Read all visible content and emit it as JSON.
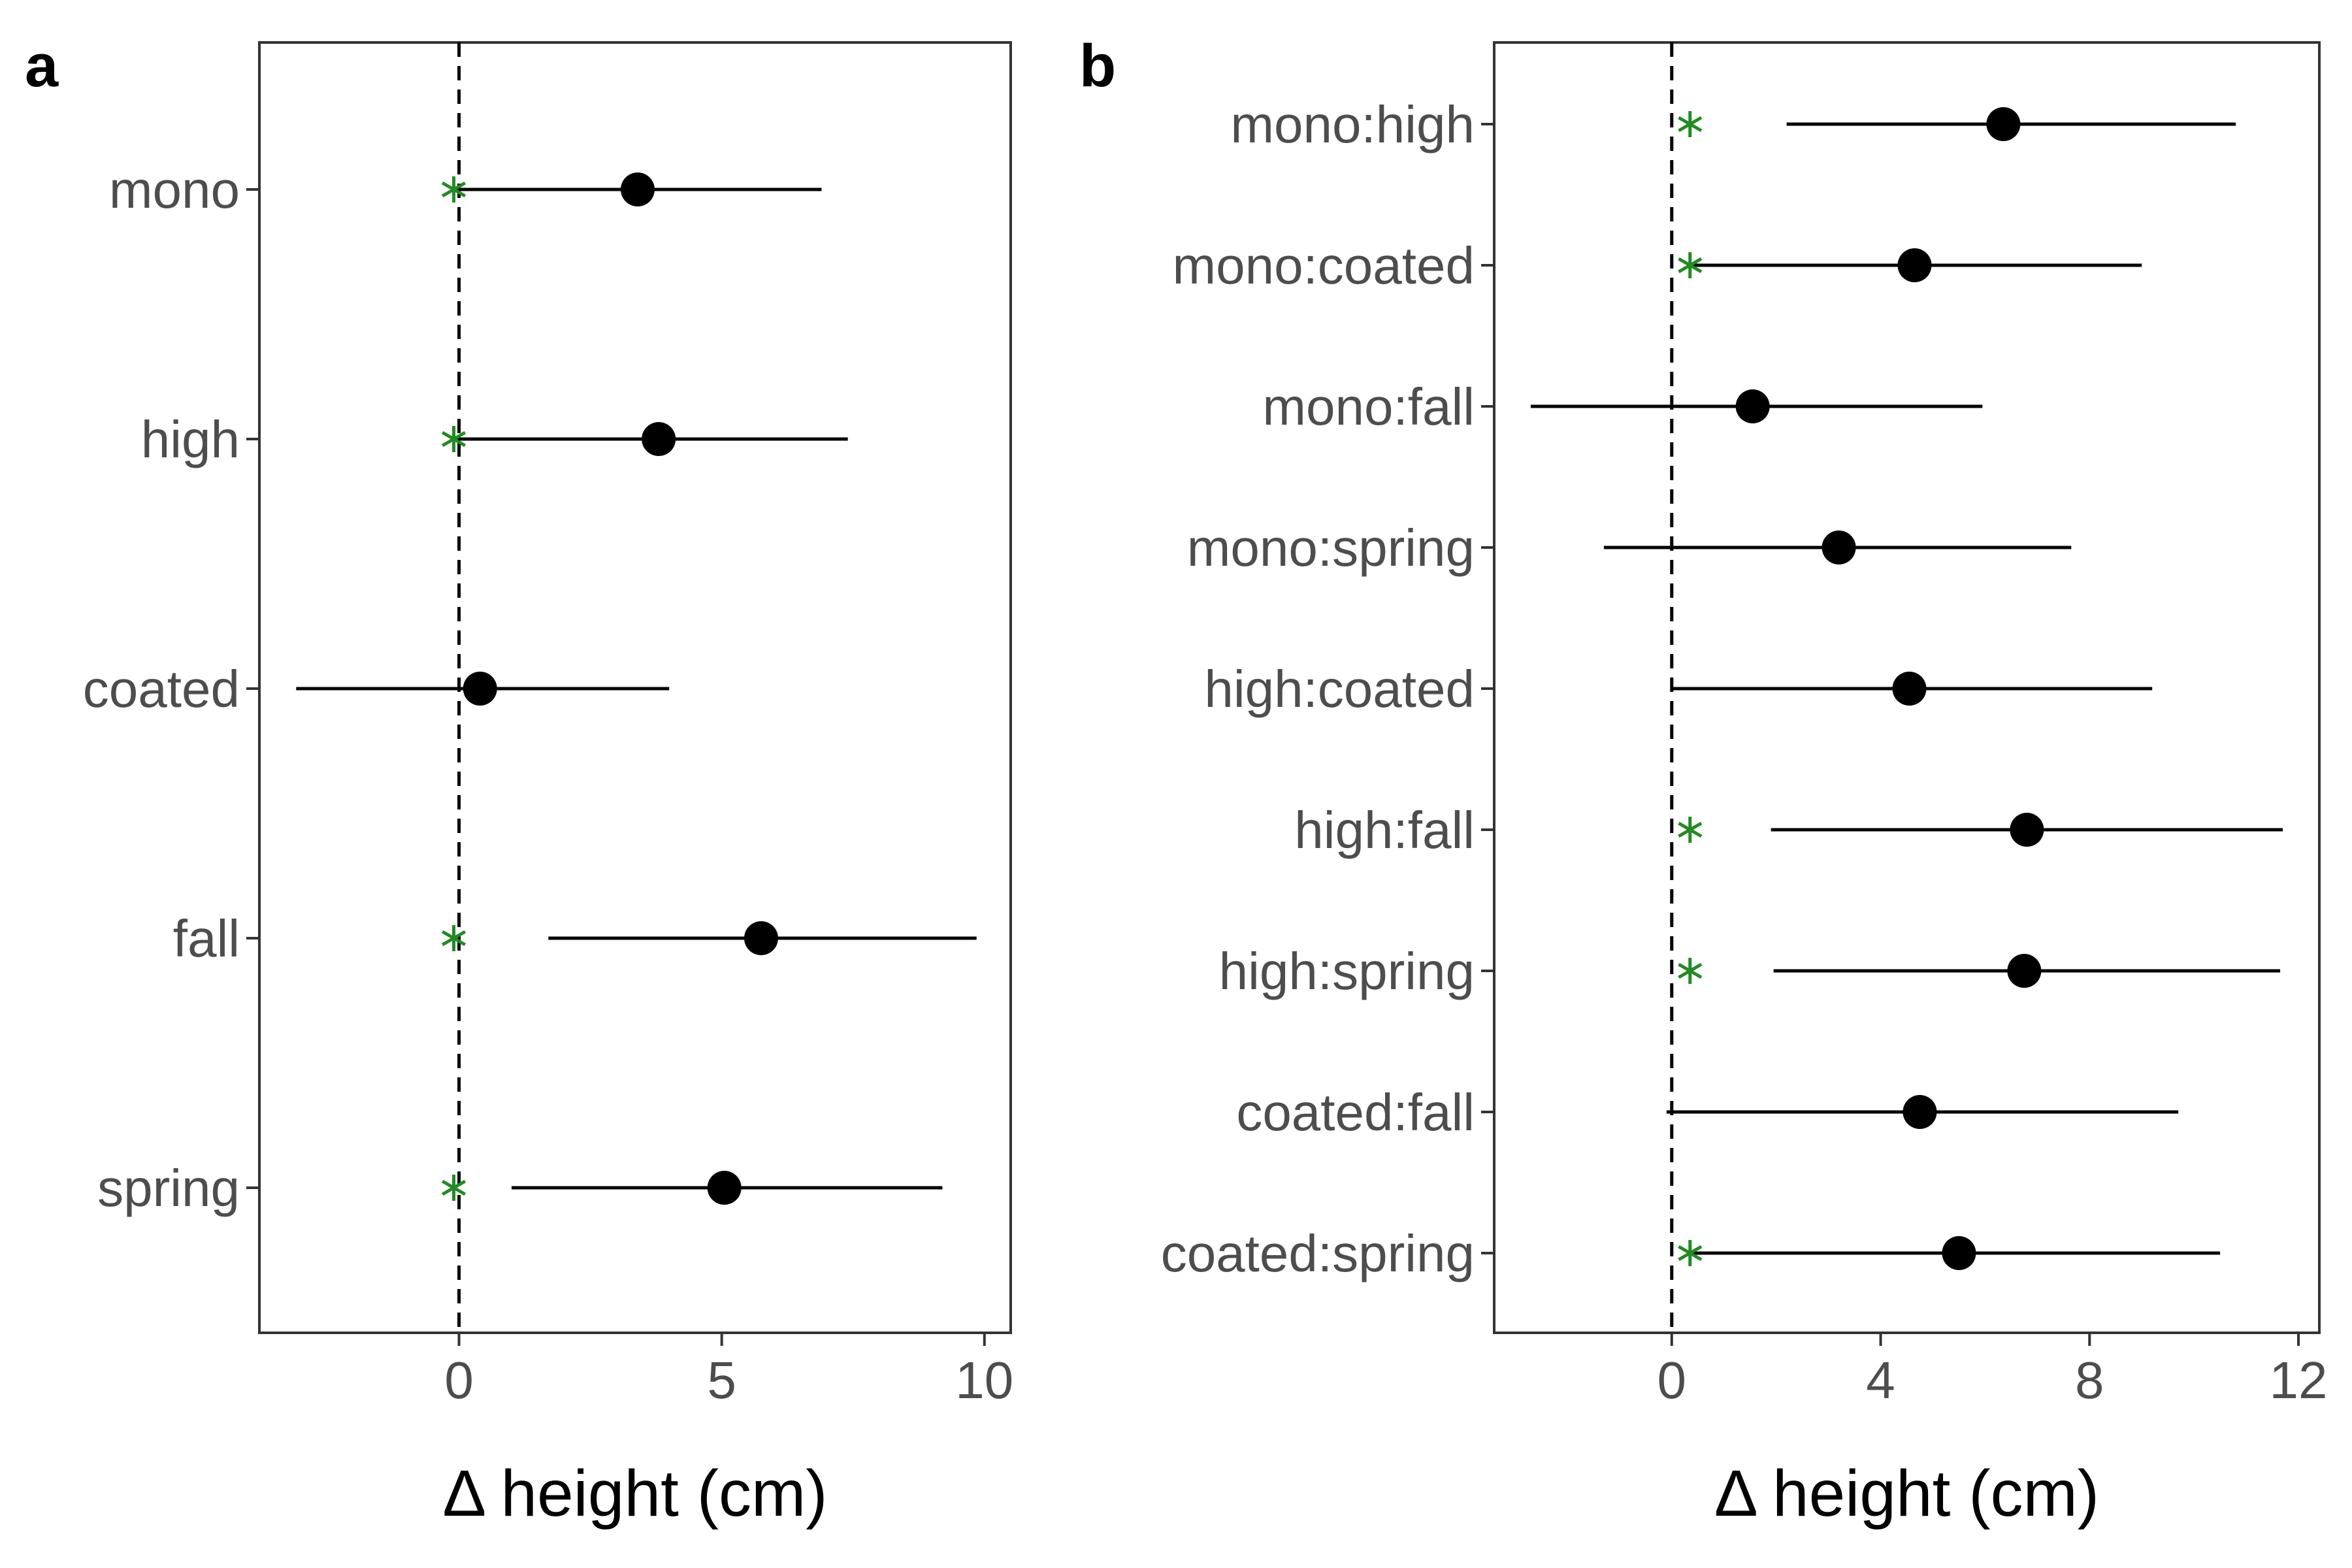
{
  "chart_data": [
    {
      "type": "scatter",
      "panel": "a",
      "xlabel": "Δ height (cm)",
      "xlim": [
        -3.8,
        10.5
      ],
      "xticks": [
        0,
        5,
        10
      ],
      "reference_line_x": 0,
      "categories": [
        "mono",
        "high",
        "coated",
        "fall",
        "spring"
      ],
      "series": [
        {
          "estimate": [
            3.4,
            3.8,
            0.4,
            5.75,
            5.05
          ]
        },
        {
          "lower": [
            -0.1,
            -0.1,
            -3.1,
            1.7,
            1.0
          ]
        },
        {
          "upper": [
            6.9,
            7.4,
            4.0,
            9.85,
            9.2
          ]
        }
      ],
      "significance_markers": {
        "categories": [
          "mono",
          "high",
          "fall",
          "spring"
        ],
        "x": -0.1,
        "symbol": "*",
        "color": "#228B22"
      },
      "colors": {
        "point": "#000000",
        "marker": "#228B22"
      }
    },
    {
      "type": "scatter",
      "panel": "b",
      "xlabel": "Δ height (cm)",
      "xlim": [
        -3.4,
        12.4
      ],
      "xticks": [
        0,
        4,
        8,
        12
      ],
      "reference_line_x": 0,
      "categories": [
        "mono:high",
        "mono:coated",
        "mono:fall",
        "mono:spring",
        "high:coated",
        "high:fall",
        "high:spring",
        "coated:fall",
        "coated:spring"
      ],
      "series": [
        {
          "estimate": [
            6.35,
            4.65,
            1.55,
            3.2,
            4.55,
            6.8,
            6.75,
            4.75,
            5.5
          ]
        },
        {
          "lower": [
            2.2,
            0.4,
            -2.7,
            -1.3,
            0.0,
            1.9,
            1.95,
            -0.1,
            0.4
          ]
        },
        {
          "upper": [
            10.8,
            9.0,
            5.95,
            7.65,
            9.2,
            11.7,
            11.65,
            9.7,
            10.5
          ]
        }
      ],
      "significance_markers": {
        "categories": [
          "mono:high",
          "mono:coated",
          "high:fall",
          "high:spring",
          "coated:spring"
        ],
        "x": 0.35,
        "symbol": "*",
        "color": "#228B22"
      },
      "colors": {
        "point": "#000000",
        "marker": "#228B22"
      }
    }
  ]
}
